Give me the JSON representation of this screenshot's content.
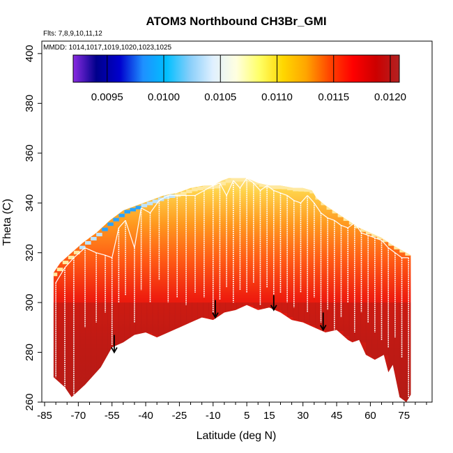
{
  "chart_data": {
    "type": "heatmap",
    "title": "ATOM3 Northbound CH3Br_GMI",
    "annotations": {
      "flights": "Flts: 7,8,9,10,11,12",
      "dates": "MMDD: 1014,1017,1019,1020,1023,1025"
    },
    "xlabel": "Latitude (deg N)",
    "ylabel": "Theta (C)",
    "xlim": [
      -85,
      85
    ],
    "ylim": [
      260,
      405
    ],
    "x_ticks": [
      -85,
      -70,
      -55,
      -40,
      -25,
      -10,
      5,
      15,
      30,
      45,
      60,
      75
    ],
    "x_tick_labels": [
      "-85",
      "-70",
      "-55",
      "-40",
      "-25",
      "-10",
      "5",
      "15",
      "30",
      "45",
      "60",
      "75"
    ],
    "y_ticks": [
      260,
      280,
      300,
      320,
      340,
      360,
      380,
      400
    ],
    "y_tick_labels": [
      "260",
      "280",
      "300",
      "320",
      "340",
      "360",
      "380",
      "400"
    ],
    "colorbar": {
      "range": [
        0.0092,
        0.01208
      ],
      "ticks": [
        0.0095,
        0.01,
        0.0105,
        0.011,
        0.0115,
        0.012
      ],
      "tick_labels": [
        "0.0095",
        "0.0100",
        "0.0105",
        "0.0110",
        "0.0115",
        "0.0120"
      ],
      "colors": [
        "#8a2be2",
        "#00008b",
        "#0000cd",
        "#1e90ff",
        "#00bfff",
        "#87cefa",
        "#e0f0ff",
        "#ffffe0",
        "#ffff66",
        "#ffd700",
        "#ffa500",
        "#ff4500",
        "#ff0000",
        "#cc0000",
        "#b22222"
      ]
    },
    "field_colors": {
      "low": "#ffe9a0",
      "mid": "#ff8c1a",
      "high": "#ee1c0e",
      "max": "#b51b16",
      "blue": "#29a3ff",
      "light_blue": "#bfe4ff",
      "flight_track": "#ffffff",
      "arrow": "#000000"
    },
    "top_boundary": {
      "lat": [
        -81,
        -78,
        -73,
        -68,
        -62,
        -56,
        -50,
        -44,
        -38,
        -32,
        -26,
        -20,
        -14,
        -10,
        -6,
        -3,
        0,
        5,
        10,
        15,
        20,
        26,
        30,
        34,
        36,
        40,
        45,
        50,
        55,
        60,
        65,
        70,
        74,
        78
      ],
      "theta": [
        312,
        316,
        320,
        324,
        328,
        333,
        337,
        339,
        341,
        343,
        344,
        346,
        347,
        347,
        349,
        350,
        350,
        350,
        348,
        347,
        347,
        346,
        346,
        345,
        342,
        339,
        336,
        333,
        330,
        328,
        326,
        323,
        321,
        319
      ]
    },
    "bottom_boundary": {
      "lat": [
        -81,
        -76,
        -73,
        -67,
        -60,
        -55,
        -50,
        -45,
        -40,
        -35,
        -30,
        -25,
        -20,
        -15,
        -10,
        -5,
        0,
        5,
        10,
        15,
        20,
        25,
        30,
        35,
        40,
        45,
        50,
        52,
        55,
        58,
        62,
        66,
        68,
        70,
        73,
        76,
        78
      ],
      "theta": [
        270,
        266,
        262,
        267,
        274,
        282,
        284,
        287,
        288,
        286,
        288,
        290,
        292,
        294,
        293,
        296,
        297,
        299,
        297,
        298,
        296,
        293,
        292,
        290,
        288,
        289,
        285,
        284,
        285,
        279,
        277,
        279,
        272,
        275,
        262,
        260,
        263
      ]
    },
    "flight_track_profiles": {
      "lat": [
        -80,
        -76,
        -72,
        -67,
        -62,
        -58,
        -55,
        -52,
        -49,
        -45,
        -42,
        -38,
        -34,
        -30,
        -26,
        -22,
        -18,
        -14,
        -10,
        -7,
        -4,
        -1,
        2,
        5,
        8,
        11,
        14,
        17,
        20,
        23,
        26,
        29,
        32,
        35,
        38,
        41,
        44,
        47,
        50,
        53,
        56,
        59,
        62,
        65,
        68,
        71,
        74,
        77
      ],
      "theta_top": [
        308,
        314,
        318,
        322,
        320,
        319,
        318,
        330,
        333,
        322,
        338,
        336,
        341,
        343,
        343,
        343,
        343,
        345,
        347,
        348,
        343,
        349,
        346,
        350,
        348,
        345,
        347,
        345,
        344,
        343,
        341,
        340,
        343,
        340,
        336,
        334,
        333,
        331,
        330,
        332,
        328,
        327,
        326,
        325,
        322,
        320,
        318,
        318
      ],
      "theta_bottom": [
        270,
        265,
        263,
        290,
        292,
        296,
        283,
        300,
        303,
        292,
        305,
        300,
        309,
        300,
        302,
        299,
        304,
        302,
        296,
        301,
        306,
        300,
        305,
        304,
        308,
        299,
        306,
        302,
        304,
        300,
        298,
        304,
        296,
        302,
        292,
        297,
        289,
        294,
        300,
        288,
        296,
        292,
        288,
        285,
        282,
        286,
        278,
        262
      ]
    },
    "arrows": [
      {
        "lat": -54,
        "theta_start": 287,
        "theta_end": 280
      },
      {
        "lat": -9,
        "theta_start": 301,
        "theta_end": 294
      },
      {
        "lat": 17,
        "theta_start": 303,
        "theta_end": 297
      },
      {
        "lat": 39,
        "theta_start": 296,
        "theta_end": 289
      }
    ]
  }
}
